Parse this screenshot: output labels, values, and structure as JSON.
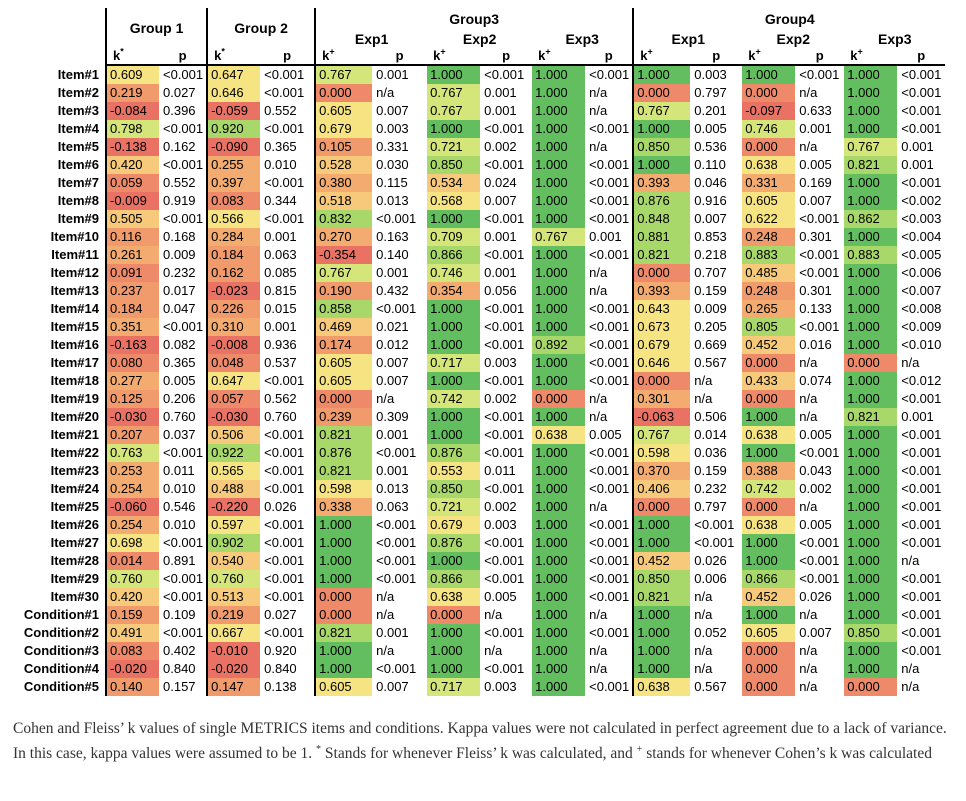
{
  "groups": {
    "g1": "Group 1",
    "g2": "Group 2",
    "g3": "Group3",
    "g4": "Group4"
  },
  "subgroups": [
    "Exp1",
    "Exp2",
    "Exp3",
    "Exp1",
    "Exp2",
    "Exp3"
  ],
  "col_labels": {
    "k": "k",
    "p": "p",
    "fleiss_mark": "*",
    "cohen_mark": "+"
  },
  "colors": {
    "red": "#ed7d6c",
    "orange": "#f2a36c",
    "yellow": "#f5e27a",
    "green": "#6cc36c"
  },
  "rows": [
    [
      "Item#1",
      [
        "0.609",
        "<0.001"
      ],
      [
        "0.647",
        "<0.001"
      ],
      [
        "0.767",
        "0.001"
      ],
      [
        "1.000",
        "<0.001"
      ],
      [
        "1.000",
        "<0.001"
      ],
      [
        "1.000",
        "0.003"
      ],
      [
        "1.000",
        "<0.001"
      ],
      [
        "1.000",
        "<0.001"
      ]
    ],
    [
      "Item#2",
      [
        "0.219",
        "0.027"
      ],
      [
        "0.646",
        "<0.001"
      ],
      [
        "0.000",
        "n/a"
      ],
      [
        "0.767",
        "0.001"
      ],
      [
        "1.000",
        "n/a"
      ],
      [
        "0.000",
        "0.797"
      ],
      [
        "0.000",
        "n/a"
      ],
      [
        "1.000",
        "<0.001"
      ]
    ],
    [
      "Item#3",
      [
        "-0.084",
        "0.396"
      ],
      [
        "-0.059",
        "0.552"
      ],
      [
        "0.605",
        "0.007"
      ],
      [
        "0.767",
        "0.001"
      ],
      [
        "1.000",
        "n/a"
      ],
      [
        "0.767",
        "0.201"
      ],
      [
        "-0.097",
        "0.633"
      ],
      [
        "1.000",
        "<0.001"
      ]
    ],
    [
      "Item#4",
      [
        "0.798",
        "<0.001"
      ],
      [
        "0.920",
        "<0.001"
      ],
      [
        "0.679",
        "0.003"
      ],
      [
        "1.000",
        "<0.001"
      ],
      [
        "1.000",
        "<0.001"
      ],
      [
        "1.000",
        "0.005"
      ],
      [
        "0.746",
        "0.001"
      ],
      [
        "1.000",
        "<0.001"
      ]
    ],
    [
      "Item#5",
      [
        "-0.138",
        "0.162"
      ],
      [
        "-0.090",
        "0.365"
      ],
      [
        "0.105",
        "0.331"
      ],
      [
        "0.721",
        "0.002"
      ],
      [
        "1.000",
        "n/a"
      ],
      [
        "0.850",
        "0.536"
      ],
      [
        "0.000",
        "n/a"
      ],
      [
        "0.767",
        "0.001"
      ]
    ],
    [
      "Item#6",
      [
        "0.420",
        "<0.001"
      ],
      [
        "0.255",
        "0.010"
      ],
      [
        "0.528",
        "0.030"
      ],
      [
        "0.850",
        "<0.001"
      ],
      [
        "1.000",
        "<0.001"
      ],
      [
        "1.000",
        "0.110"
      ],
      [
        "0.638",
        "0.005"
      ],
      [
        "0.821",
        "0.001"
      ]
    ],
    [
      "Item#7",
      [
        "0.059",
        "0.552"
      ],
      [
        "0.397",
        "<0.001"
      ],
      [
        "0.380",
        "0.115"
      ],
      [
        "0.534",
        "0.024"
      ],
      [
        "1.000",
        "<0.001"
      ],
      [
        "0.393",
        "0.046"
      ],
      [
        "0.331",
        "0.169"
      ],
      [
        "1.000",
        "<0.001"
      ]
    ],
    [
      "Item#8",
      [
        "-0.009",
        "0.919"
      ],
      [
        "0.083",
        "0.344"
      ],
      [
        "0.518",
        "0.013"
      ],
      [
        "0.568",
        "0.007"
      ],
      [
        "1.000",
        "<0.001"
      ],
      [
        "0.876",
        "0.916"
      ],
      [
        "0.605",
        "0.007"
      ],
      [
        "1.000",
        "<0.002"
      ]
    ],
    [
      "Item#9",
      [
        "0.505",
        "<0.001"
      ],
      [
        "0.566",
        "<0.001"
      ],
      [
        "0.832",
        "<0.001"
      ],
      [
        "1.000",
        "<0.001"
      ],
      [
        "1.000",
        "<0.001"
      ],
      [
        "0.848",
        "0.007"
      ],
      [
        "0.622",
        "<0.001"
      ],
      [
        "0.862",
        "<0.003"
      ]
    ],
    [
      "Item#10",
      [
        "0.116",
        "0.168"
      ],
      [
        "0.284",
        "0.001"
      ],
      [
        "0.270",
        "0.163"
      ],
      [
        "0.709",
        "0.001"
      ],
      [
        "0.767",
        "0.001"
      ],
      [
        "0.881",
        "0.853"
      ],
      [
        "0.248",
        "0.301"
      ],
      [
        "1.000",
        "<0.004"
      ]
    ],
    [
      "Item#11",
      [
        "0.261",
        "0.009"
      ],
      [
        "0.184",
        "0.063"
      ],
      [
        "-0.354",
        "0.140"
      ],
      [
        "0.866",
        "<0.001"
      ],
      [
        "1.000",
        "<0.001"
      ],
      [
        "0.821",
        "0.218"
      ],
      [
        "0.883",
        "<0.001"
      ],
      [
        "0.883",
        "<0.005"
      ]
    ],
    [
      "Item#12",
      [
        "0.091",
        "0.232"
      ],
      [
        "0.162",
        "0.085"
      ],
      [
        "0.767",
        "0.001"
      ],
      [
        "0.746",
        "0.001"
      ],
      [
        "1.000",
        "n/a"
      ],
      [
        "0.000",
        "0.707"
      ],
      [
        "0.485",
        "<0.001"
      ],
      [
        "1.000",
        "<0.006"
      ]
    ],
    [
      "Item#13",
      [
        "0.237",
        "0.017"
      ],
      [
        "-0.023",
        "0.815"
      ],
      [
        "0.190",
        "0.432"
      ],
      [
        "0.354",
        "0.056"
      ],
      [
        "1.000",
        "n/a"
      ],
      [
        "0.393",
        "0.159"
      ],
      [
        "0.248",
        "0.301"
      ],
      [
        "1.000",
        "<0.007"
      ]
    ],
    [
      "Item#14",
      [
        "0.184",
        "0.047"
      ],
      [
        "0.226",
        "0.015"
      ],
      [
        "0.858",
        "<0.001"
      ],
      [
        "1.000",
        "<0.001"
      ],
      [
        "1.000",
        "<0.001"
      ],
      [
        "0.643",
        "0.009"
      ],
      [
        "0.265",
        "0.133"
      ],
      [
        "1.000",
        "<0.008"
      ]
    ],
    [
      "Item#15",
      [
        "0.351",
        "<0.001"
      ],
      [
        "0.310",
        "0.001"
      ],
      [
        "0.469",
        "0.021"
      ],
      [
        "1.000",
        "<0.001"
      ],
      [
        "1.000",
        "<0.001"
      ],
      [
        "0.673",
        "0.205"
      ],
      [
        "0.805",
        "<0.001"
      ],
      [
        "1.000",
        "<0.009"
      ]
    ],
    [
      "Item#16",
      [
        "-0.163",
        "0.082"
      ],
      [
        "-0.008",
        "0.936"
      ],
      [
        "0.174",
        "0.012"
      ],
      [
        "1.000",
        "<0.001"
      ],
      [
        "0.892",
        "<0.001"
      ],
      [
        "0.679",
        "0.669"
      ],
      [
        "0.452",
        "0.016"
      ],
      [
        "1.000",
        "<0.010"
      ]
    ],
    [
      "Item#17",
      [
        "0.080",
        "0.365"
      ],
      [
        "0.048",
        "0.537"
      ],
      [
        "0.605",
        "0.007"
      ],
      [
        "0.717",
        "0.003"
      ],
      [
        "1.000",
        "<0.001"
      ],
      [
        "0.646",
        "0.567"
      ],
      [
        "0.000",
        "n/a"
      ],
      [
        "0.000",
        "n/a"
      ]
    ],
    [
      "Item#18",
      [
        "0.277",
        "0.005"
      ],
      [
        "0.647",
        "<0.001"
      ],
      [
        "0.605",
        "0.007"
      ],
      [
        "1.000",
        "<0.001"
      ],
      [
        "1.000",
        "<0.001"
      ],
      [
        "0.000",
        "n/a"
      ],
      [
        "0.433",
        "0.074"
      ],
      [
        "1.000",
        "<0.012"
      ]
    ],
    [
      "Item#19",
      [
        "0.125",
        "0.206"
      ],
      [
        "0.057",
        "0.562"
      ],
      [
        "0.000",
        "n/a"
      ],
      [
        "0.742",
        "0.002"
      ],
      [
        "0.000",
        "n/a"
      ],
      [
        "0.301",
        "n/a"
      ],
      [
        "0.000",
        "n/a"
      ],
      [
        "1.000",
        "<0.001"
      ]
    ],
    [
      "Item#20",
      [
        "-0.030",
        "0.760"
      ],
      [
        "-0.030",
        "0.760"
      ],
      [
        "0.239",
        "0.309"
      ],
      [
        "1.000",
        "<0.001"
      ],
      [
        "1.000",
        "n/a"
      ],
      [
        "-0.063",
        "0.506"
      ],
      [
        "1.000",
        "n/a"
      ],
      [
        "0.821",
        "0.001"
      ]
    ],
    [
      "Item#21",
      [
        "0.207",
        "0.037"
      ],
      [
        "0.506",
        "<0.001"
      ],
      [
        "0.821",
        "0.001"
      ],
      [
        "1.000",
        "<0.001"
      ],
      [
        "0.638",
        "0.005"
      ],
      [
        "0.767",
        "0.014"
      ],
      [
        "0.638",
        "0.005"
      ],
      [
        "1.000",
        "<0.001"
      ]
    ],
    [
      "Item#22",
      [
        "0.763",
        "<0.001"
      ],
      [
        "0.922",
        "<0.001"
      ],
      [
        "0.876",
        "<0.001"
      ],
      [
        "0.876",
        "<0.001"
      ],
      [
        "1.000",
        "<0.001"
      ],
      [
        "0.598",
        "0.036"
      ],
      [
        "1.000",
        "<0.001"
      ],
      [
        "1.000",
        "<0.001"
      ]
    ],
    [
      "Item#23",
      [
        "0.253",
        "0.011"
      ],
      [
        "0.565",
        "<0.001"
      ],
      [
        "0.821",
        "0.001"
      ],
      [
        "0.553",
        "0.011"
      ],
      [
        "1.000",
        "<0.001"
      ],
      [
        "0.370",
        "0.159"
      ],
      [
        "0.388",
        "0.043"
      ],
      [
        "1.000",
        "<0.001"
      ]
    ],
    [
      "Item#24",
      [
        "0.254",
        "0.010"
      ],
      [
        "0.488",
        "<0.001"
      ],
      [
        "0.598",
        "0.013"
      ],
      [
        "0.850",
        "<0.001"
      ],
      [
        "1.000",
        "<0.001"
      ],
      [
        "0.406",
        "0.232"
      ],
      [
        "0.742",
        "0.002"
      ],
      [
        "1.000",
        "<0.001"
      ]
    ],
    [
      "Item#25",
      [
        "-0.060",
        "0.546"
      ],
      [
        "-0.220",
        "0.026"
      ],
      [
        "0.338",
        "0.063"
      ],
      [
        "0.721",
        "0.002"
      ],
      [
        "1.000",
        "n/a"
      ],
      [
        "0.000",
        "0.797"
      ],
      [
        "0.000",
        "n/a"
      ],
      [
        "1.000",
        "<0.001"
      ]
    ],
    [
      "Item#26",
      [
        "0.254",
        "0.010"
      ],
      [
        "0.597",
        "<0.001"
      ],
      [
        "1.000",
        "<0.001"
      ],
      [
        "0.679",
        "0.003"
      ],
      [
        "1.000",
        "<0.001"
      ],
      [
        "1.000",
        "<0.001"
      ],
      [
        "0.638",
        "0.005"
      ],
      [
        "1.000",
        "<0.001"
      ]
    ],
    [
      "Item#27",
      [
        "0.698",
        "<0.001"
      ],
      [
        "0.902",
        "<0.001"
      ],
      [
        "1.000",
        "<0.001"
      ],
      [
        "0.876",
        "<0.001"
      ],
      [
        "1.000",
        "<0.001"
      ],
      [
        "1.000",
        "<0.001"
      ],
      [
        "1.000",
        "<0.001"
      ],
      [
        "1.000",
        "<0.001"
      ]
    ],
    [
      "Item#28",
      [
        "0.014",
        "0.891"
      ],
      [
        "0.540",
        "<0.001"
      ],
      [
        "1.000",
        "<0.001"
      ],
      [
        "1.000",
        "<0.001"
      ],
      [
        "1.000",
        "<0.001"
      ],
      [
        "0.452",
        "0.026"
      ],
      [
        "1.000",
        "<0.001"
      ],
      [
        "1.000",
        "n/a"
      ]
    ],
    [
      "Item#29",
      [
        "0.760",
        "<0.001"
      ],
      [
        "0.760",
        "<0.001"
      ],
      [
        "1.000",
        "<0.001"
      ],
      [
        "0.866",
        "<0.001"
      ],
      [
        "1.000",
        "<0.001"
      ],
      [
        "0.850",
        "0.006"
      ],
      [
        "0.866",
        "<0.001"
      ],
      [
        "1.000",
        "<0.001"
      ]
    ],
    [
      "Item#30",
      [
        "0.420",
        "<0.001"
      ],
      [
        "0.513",
        "<0.001"
      ],
      [
        "0.000",
        "n/a"
      ],
      [
        "0.638",
        "0.005"
      ],
      [
        "1.000",
        "<0.001"
      ],
      [
        "0.821",
        "n/a"
      ],
      [
        "0.452",
        "0.026"
      ],
      [
        "1.000",
        "<0.001"
      ]
    ],
    [
      "Condition#1",
      [
        "0.159",
        "0.109"
      ],
      [
        "0.219",
        "0.027"
      ],
      [
        "0.000",
        "n/a"
      ],
      [
        "0.000",
        "n/a"
      ],
      [
        "1.000",
        "n/a"
      ],
      [
        "1.000",
        "n/a"
      ],
      [
        "1.000",
        "n/a"
      ],
      [
        "1.000",
        "<0.001"
      ]
    ],
    [
      "Condition#2",
      [
        "0.491",
        "<0.001"
      ],
      [
        "0.667",
        "<0.001"
      ],
      [
        "0.821",
        "0.001"
      ],
      [
        "1.000",
        "<0.001"
      ],
      [
        "1.000",
        "<0.001"
      ],
      [
        "1.000",
        "0.052"
      ],
      [
        "0.605",
        "0.007"
      ],
      [
        "0.850",
        "<0.001"
      ]
    ],
    [
      "Condition#3",
      [
        "0.083",
        "0.402"
      ],
      [
        "-0.010",
        "0.920"
      ],
      [
        "1.000",
        "n/a"
      ],
      [
        "1.000",
        "n/a"
      ],
      [
        "1.000",
        "n/a"
      ],
      [
        "1.000",
        "n/a"
      ],
      [
        "0.000",
        "n/a"
      ],
      [
        "1.000",
        "<0.001"
      ]
    ],
    [
      "Condition#4",
      [
        "-0.020",
        "0.840"
      ],
      [
        "-0.020",
        "0.840"
      ],
      [
        "1.000",
        "<0.001"
      ],
      [
        "1.000",
        "<0.001"
      ],
      [
        "1.000",
        "n/a"
      ],
      [
        "1.000",
        "n/a"
      ],
      [
        "0.000",
        "n/a"
      ],
      [
        "1.000",
        "n/a"
      ]
    ],
    [
      "Condition#5",
      [
        "0.140",
        "0.157"
      ],
      [
        "0.147",
        "0.138"
      ],
      [
        "0.605",
        "0.007"
      ],
      [
        "0.717",
        "0.003"
      ],
      [
        "1.000",
        "<0.001"
      ],
      [
        "0.638",
        "0.567"
      ],
      [
        "0.000",
        "n/a"
      ],
      [
        "0.000",
        "n/a"
      ]
    ]
  ],
  "caption": {
    "text1": "Cohen and Fleiss’ k values of single METRICS items and conditions. Kappa values were not calculated in perfect agreement due to a lack of variance. In this case, kappa values were assumed to be 1. ",
    "sup1": "*",
    "text2": " Stands for whenever Fleiss’ k was calculated, and ",
    "sup2": "+",
    "text3": " stands for whenever Cohen’s k was calculated"
  }
}
